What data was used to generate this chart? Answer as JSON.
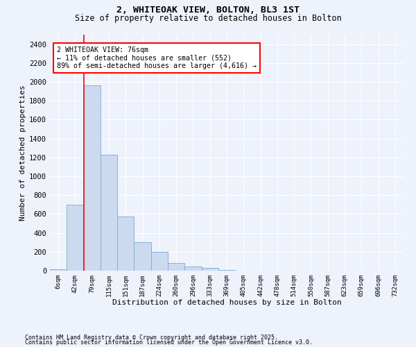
{
  "title1": "2, WHITEOAK VIEW, BOLTON, BL3 1ST",
  "title2": "Size of property relative to detached houses in Bolton",
  "xlabel": "Distribution of detached houses by size in Bolton",
  "ylabel": "Number of detached properties",
  "bar_color": "#ccdaf0",
  "bar_edge_color": "#7aaad0",
  "background_color": "#eef2fb",
  "grid_color": "#ffffff",
  "categories": [
    "6sqm",
    "42sqm",
    "79sqm",
    "115sqm",
    "151sqm",
    "187sqm",
    "224sqm",
    "260sqm",
    "296sqm",
    "333sqm",
    "369sqm",
    "405sqm",
    "442sqm",
    "478sqm",
    "514sqm",
    "550sqm",
    "587sqm",
    "623sqm",
    "659sqm",
    "696sqm",
    "732sqm"
  ],
  "bar_heights": [
    15,
    700,
    1960,
    1230,
    575,
    305,
    200,
    80,
    45,
    30,
    5,
    0,
    0,
    0,
    0,
    0,
    0,
    0,
    0,
    0,
    0
  ],
  "ylim": [
    0,
    2500
  ],
  "yticks": [
    0,
    200,
    400,
    600,
    800,
    1000,
    1200,
    1400,
    1600,
    1800,
    2000,
    2200,
    2400
  ],
  "red_line_x": 1.5,
  "annotation_text": "2 WHITEOAK VIEW: 76sqm\n← 11% of detached houses are smaller (552)\n89% of semi-detached houses are larger (4,616) →",
  "footnote1": "Contains HM Land Registry data © Crown copyright and database right 2025.",
  "footnote2": "Contains public sector information licensed under the Open Government Licence v3.0."
}
